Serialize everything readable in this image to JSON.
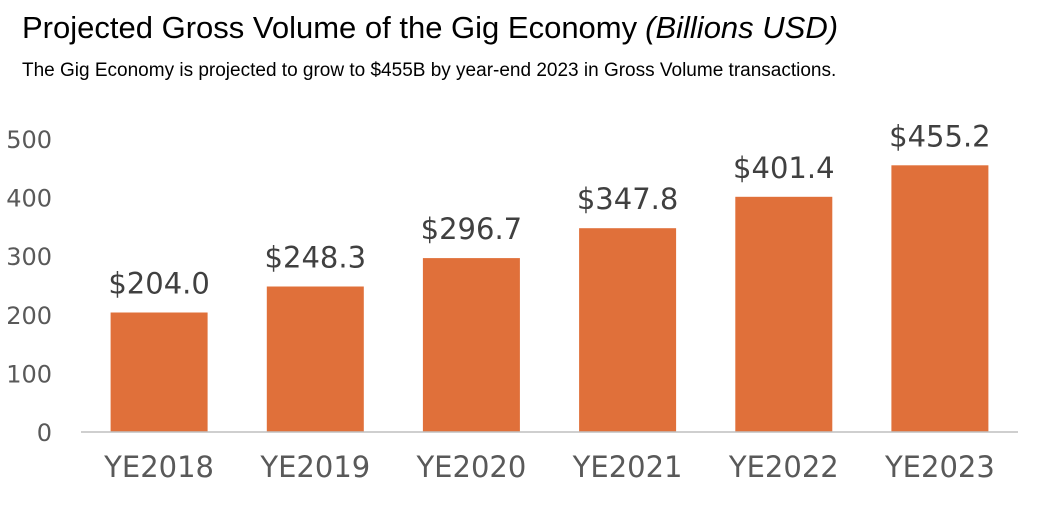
{
  "header": {
    "title": "Projected Gross Volume of the Gig Economy",
    "title_unit": "(Billions USD)",
    "subtitle": "The Gig Economy is projected to grow to $455B by year-end 2023 in Gross Volume transactions."
  },
  "colors": {
    "bar": "#E0703A",
    "axis": "#BFBFBF",
    "tick_text": "#595959",
    "data_label_text": "#404040"
  },
  "chart_data": {
    "type": "bar",
    "categories": [
      "YE2018",
      "YE2019",
      "YE2020",
      "YE2021",
      "YE2022",
      "YE2023"
    ],
    "values": [
      204.0,
      248.3,
      296.7,
      347.8,
      401.4,
      455.2
    ],
    "data_labels": [
      "$204.0",
      "$248.3",
      "$296.7",
      "$347.8",
      "$401.4",
      "$455.2"
    ],
    "title": "Projected Gross Volume of the Gig Economy (Billions USD)",
    "xlabel": "",
    "ylabel": "",
    "ylim": [
      0,
      500
    ],
    "yticks": [
      0,
      100,
      200,
      300,
      400,
      500
    ],
    "grid": false,
    "legend": "none"
  }
}
